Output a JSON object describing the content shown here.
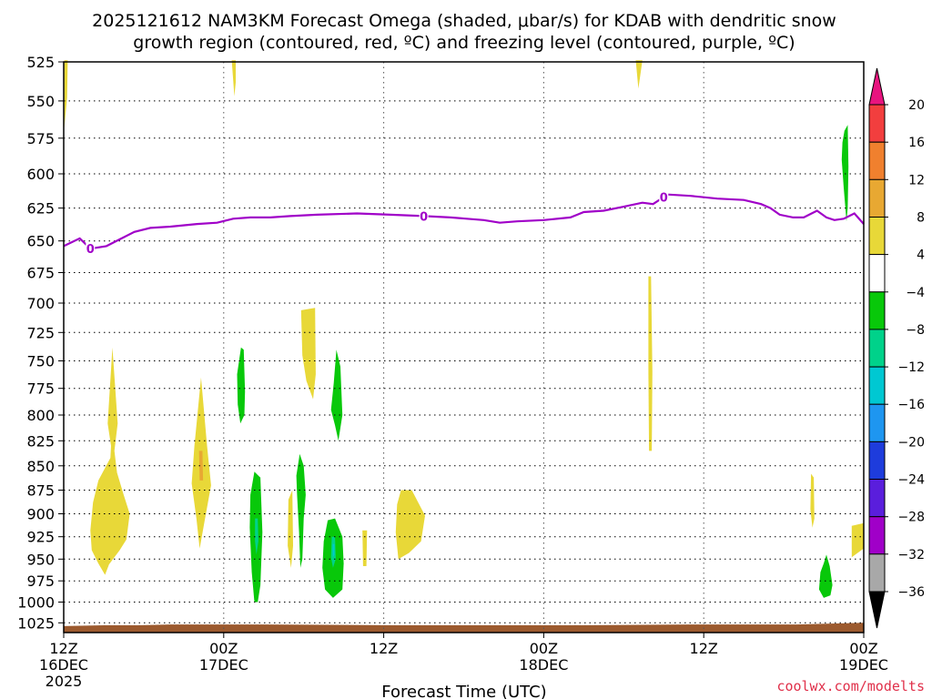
{
  "title_line1": "2025121612 NAM3KM Forecast Omega (shaded, μbar/s) for KDAB with dendritic snow",
  "title_line2": "growth region (contoured, red, ºC) and freezing level (contoured, purple, ºC)",
  "credit": "coolwx.com/modelts",
  "chart_data": {
    "type": "heatmap",
    "xlabel": "Forecast Time (UTC)",
    "x_range_hours": [
      0,
      60
    ],
    "y_range_mb": [
      525,
      1037
    ],
    "y_scale": "log-pressure (inverted)",
    "y_ticks": [
      525,
      550,
      575,
      600,
      625,
      650,
      675,
      700,
      725,
      750,
      775,
      800,
      825,
      850,
      875,
      900,
      925,
      950,
      975,
      1000,
      1025
    ],
    "x_ticks": [
      {
        "hour": 0,
        "label": "12Z",
        "sub": "16DEC",
        "sub2": "2025"
      },
      {
        "hour": 12,
        "label": "00Z",
        "sub": "17DEC",
        "sub2": ""
      },
      {
        "hour": 24,
        "label": "12Z",
        "sub": "",
        "sub2": ""
      },
      {
        "hour": 36,
        "label": "00Z",
        "sub": "18DEC",
        "sub2": ""
      },
      {
        "hour": 48,
        "label": "12Z",
        "sub": "",
        "sub2": ""
      },
      {
        "hour": 60,
        "label": "00Z",
        "sub": "19DEC",
        "sub2": ""
      }
    ],
    "grid": "dotted",
    "freezing_level": {
      "label": "0",
      "color": "#a000c8",
      "label_hours": [
        2,
        27,
        45
      ],
      "points": [
        [
          0,
          654
        ],
        [
          1.2,
          648
        ],
        [
          2,
          656
        ],
        [
          3.2,
          654
        ],
        [
          5.3,
          643
        ],
        [
          6.5,
          640
        ],
        [
          8,
          639
        ],
        [
          10,
          637
        ],
        [
          11.5,
          636
        ],
        [
          12.7,
          633
        ],
        [
          14,
          632
        ],
        [
          15.5,
          632
        ],
        [
          17,
          631
        ],
        [
          19,
          630
        ],
        [
          22,
          629
        ],
        [
          24.5,
          630
        ],
        [
          27,
          631
        ],
        [
          29,
          632
        ],
        [
          31.5,
          634
        ],
        [
          32.7,
          636
        ],
        [
          34,
          635
        ],
        [
          36,
          634
        ],
        [
          38,
          632
        ],
        [
          39,
          628
        ],
        [
          40.5,
          627
        ],
        [
          42,
          624
        ],
        [
          43.4,
          621
        ],
        [
          44.2,
          622
        ],
        [
          45.3,
          615
        ],
        [
          47,
          616
        ],
        [
          49,
          618
        ],
        [
          51,
          619
        ],
        [
          52.3,
          622
        ],
        [
          53,
          625
        ],
        [
          53.7,
          630
        ],
        [
          54.7,
          632
        ],
        [
          55.5,
          632
        ],
        [
          56.5,
          627
        ],
        [
          57.2,
          632
        ],
        [
          57.8,
          634
        ],
        [
          58.5,
          633
        ],
        [
          59.3,
          629
        ],
        [
          60,
          637
        ]
      ]
    },
    "ground": {
      "color": "#9c5a2e",
      "points": [
        [
          0,
          1029
        ],
        [
          3,
          1028
        ],
        [
          5.5,
          1028
        ],
        [
          8,
          1027
        ],
        [
          15,
          1027
        ],
        [
          25,
          1028
        ],
        [
          32,
          1028
        ],
        [
          38,
          1028
        ],
        [
          47,
          1027
        ],
        [
          55,
          1027
        ],
        [
          60,
          1025
        ]
      ]
    },
    "omega_regions": [
      {
        "value": 6,
        "points": [
          [
            0.05,
            524
          ],
          [
            0.3,
            524
          ],
          [
            0.25,
            548
          ],
          [
            0.1,
            562
          ],
          [
            0.05,
            568
          ]
        ]
      },
      {
        "value": 6,
        "points": [
          [
            12.6,
            524
          ],
          [
            12.9,
            524
          ],
          [
            12.9,
            538
          ],
          [
            12.8,
            547
          ]
        ]
      },
      {
        "value": 6,
        "points": [
          [
            42.9,
            524
          ],
          [
            43.4,
            524
          ],
          [
            43.1,
            542
          ]
        ]
      },
      {
        "value": 6,
        "points": [
          [
            3.3,
            808
          ],
          [
            3.65,
            738
          ],
          [
            4.05,
            808
          ],
          [
            3.8,
            835
          ],
          [
            4.0,
            857
          ],
          [
            4.5,
            880
          ],
          [
            4.95,
            900
          ],
          [
            4.7,
            928
          ],
          [
            4.2,
            940
          ],
          [
            3.4,
            956
          ],
          [
            3.1,
            968
          ],
          [
            2.6,
            955
          ],
          [
            2.1,
            940
          ],
          [
            2.0,
            918
          ],
          [
            2.2,
            888
          ],
          [
            2.6,
            865
          ],
          [
            3.5,
            842
          ],
          [
            3.55,
            830
          ]
        ]
      },
      {
        "value": 6,
        "points": [
          [
            9.8,
            830
          ],
          [
            10.3,
            765
          ],
          [
            10.75,
            830
          ],
          [
            11.05,
            870
          ],
          [
            10.6,
            905
          ],
          [
            10.2,
            938
          ],
          [
            9.95,
            905
          ],
          [
            9.6,
            868
          ]
        ]
      },
      {
        "value": 10,
        "points": [
          [
            10.15,
            835
          ],
          [
            10.4,
            835
          ],
          [
            10.45,
            865
          ],
          [
            10.2,
            865
          ]
        ]
      },
      {
        "value": 6,
        "points": [
          [
            17.8,
            706
          ],
          [
            18.85,
            704
          ],
          [
            18.9,
            762
          ],
          [
            18.7,
            785
          ],
          [
            18.2,
            768
          ],
          [
            17.9,
            745
          ]
        ]
      },
      {
        "value": 6,
        "points": [
          [
            16.85,
            885
          ],
          [
            17.15,
            875
          ],
          [
            17.2,
            935
          ],
          [
            17.05,
            960
          ],
          [
            16.8,
            935
          ]
        ]
      },
      {
        "value": 6,
        "points": [
          [
            22.4,
            918
          ],
          [
            22.75,
            918
          ],
          [
            22.7,
            958
          ],
          [
            22.45,
            958
          ]
        ]
      },
      {
        "value": 6,
        "points": [
          [
            25.3,
            875
          ],
          [
            26.1,
            875
          ],
          [
            27.1,
            902
          ],
          [
            26.8,
            930
          ],
          [
            25.9,
            943
          ],
          [
            25.1,
            950
          ],
          [
            24.9,
            920
          ],
          [
            25.0,
            890
          ]
        ]
      },
      {
        "value": 6,
        "points": [
          [
            43.85,
            678
          ],
          [
            44.05,
            678
          ],
          [
            44.15,
            760
          ],
          [
            44.1,
            835
          ],
          [
            43.9,
            835
          ],
          [
            43.85,
            760
          ]
        ]
      },
      {
        "value": 6,
        "points": [
          [
            56.05,
            858
          ],
          [
            56.25,
            862
          ],
          [
            56.3,
            905
          ],
          [
            56.15,
            915
          ],
          [
            56.0,
            895
          ]
        ]
      },
      {
        "value": 6,
        "points": [
          [
            59.1,
            913
          ],
          [
            60.0,
            910
          ],
          [
            60.0,
            938
          ],
          [
            59.1,
            948
          ]
        ]
      },
      {
        "value": -6,
        "points": [
          [
            13.3,
            738
          ],
          [
            13.5,
            740
          ],
          [
            13.6,
            778
          ],
          [
            13.55,
            800
          ],
          [
            13.25,
            808
          ],
          [
            13.05,
            790
          ],
          [
            13.0,
            762
          ]
        ]
      },
      {
        "value": -6,
        "points": [
          [
            14.3,
            856
          ],
          [
            14.75,
            862
          ],
          [
            14.9,
            920
          ],
          [
            14.75,
            980
          ],
          [
            14.55,
            1000
          ],
          [
            14.3,
            1000
          ],
          [
            14.1,
            965
          ],
          [
            13.95,
            915
          ],
          [
            14.0,
            880
          ]
        ]
      },
      {
        "value": -10,
        "points": [
          [
            14.35,
            905
          ],
          [
            14.55,
            905
          ],
          [
            14.6,
            930
          ],
          [
            14.45,
            945
          ],
          [
            14.35,
            930
          ]
        ]
      },
      {
        "value": -6,
        "points": [
          [
            17.7,
            838
          ],
          [
            18.0,
            850
          ],
          [
            18.15,
            880
          ],
          [
            18.0,
            905
          ],
          [
            17.9,
            950
          ],
          [
            17.75,
            960
          ],
          [
            17.65,
            920
          ],
          [
            17.5,
            880
          ],
          [
            17.45,
            860
          ]
        ]
      },
      {
        "value": -6,
        "points": [
          [
            20.45,
            740
          ],
          [
            20.75,
            755
          ],
          [
            20.9,
            800
          ],
          [
            20.6,
            825
          ],
          [
            20.35,
            810
          ],
          [
            20.05,
            795
          ],
          [
            20.25,
            770
          ]
        ]
      },
      {
        "value": -6,
        "points": [
          [
            19.8,
            907
          ],
          [
            20.35,
            905
          ],
          [
            20.9,
            925
          ],
          [
            21.0,
            955
          ],
          [
            20.9,
            985
          ],
          [
            20.2,
            995
          ],
          [
            19.6,
            985
          ],
          [
            19.4,
            960
          ],
          [
            19.5,
            930
          ]
        ]
      },
      {
        "value": -10,
        "points": [
          [
            20.1,
            925
          ],
          [
            20.35,
            925
          ],
          [
            20.4,
            950
          ],
          [
            20.2,
            960
          ],
          [
            20.05,
            948
          ]
        ]
      },
      {
        "value": -14,
        "points": [
          [
            20.18,
            933
          ],
          [
            20.3,
            933
          ],
          [
            20.3,
            945
          ],
          [
            20.2,
            948
          ]
        ]
      },
      {
        "value": -6,
        "points": [
          [
            58.55,
            570
          ],
          [
            58.8,
            566
          ],
          [
            58.85,
            595
          ],
          [
            58.8,
            625
          ],
          [
            58.7,
            635
          ],
          [
            58.5,
            610
          ],
          [
            58.35,
            590
          ],
          [
            58.4,
            578
          ]
        ]
      },
      {
        "value": -6,
        "points": [
          [
            57.0,
            955
          ],
          [
            57.2,
            945
          ],
          [
            57.45,
            958
          ],
          [
            57.65,
            980
          ],
          [
            57.5,
            992
          ],
          [
            57.0,
            995
          ],
          [
            56.65,
            985
          ],
          [
            56.75,
            965
          ]
        ]
      }
    ],
    "colorbar": {
      "labels": [
        "20",
        "16",
        "12",
        "8",
        "4",
        "−4",
        "−8",
        "−12",
        "−16",
        "−20",
        "−24",
        "−28",
        "−32",
        "−36"
      ],
      "colors": [
        "#e8147f",
        "#f23e3e",
        "#f0802e",
        "#e8a832",
        "#e8d838",
        "#ffffff",
        "#08c80a",
        "#00d28a",
        "#00c8d2",
        "#1e96f0",
        "#1e3cdc",
        "#5a1edc",
        "#a000c8",
        "#a8a8a8",
        "#000000"
      ]
    },
    "omega_bins": [
      {
        "min": 4,
        "max": 8,
        "color": "#e8d838"
      },
      {
        "min": 8,
        "max": 12,
        "color": "#e8a832"
      },
      {
        "min": -8,
        "max": -4,
        "color": "#08c80a"
      },
      {
        "min": -12,
        "max": -8,
        "color": "#00d28a"
      },
      {
        "min": -16,
        "max": -12,
        "color": "#00c8d2"
      }
    ]
  }
}
